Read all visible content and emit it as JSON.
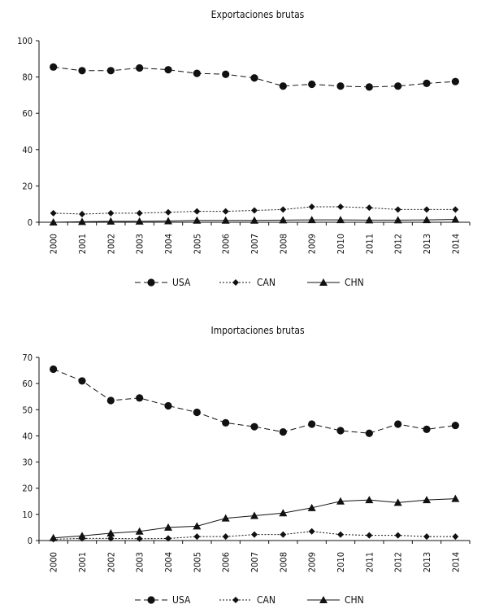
{
  "chart_data": [
    {
      "type": "line",
      "title": "Exportaciones brutas",
      "xlabel": "",
      "ylabel": "",
      "categories": [
        "2000",
        "2001",
        "2002",
        "2003",
        "2004",
        "2005",
        "2006",
        "2007",
        "2008",
        "2009",
        "2010",
        "2011",
        "2012",
        "2013",
        "2014"
      ],
      "ylim": [
        0,
        100
      ],
      "yticks": [
        0,
        20,
        40,
        60,
        80,
        100
      ],
      "grid": false,
      "legend_position": "bottom",
      "series": [
        {
          "name": "USA",
          "marker": "circle",
          "line_style": "dashed",
          "values": [
            85.5,
            83.5,
            83.5,
            85,
            84,
            82,
            81.5,
            79.5,
            75,
            76,
            75,
            74.5,
            75,
            76.5,
            77.5
          ]
        },
        {
          "name": "CAN",
          "marker": "diamond",
          "line_style": "dotted",
          "values": [
            5,
            4.5,
            5,
            5,
            5.5,
            6,
            6,
            6.5,
            7,
            8.5,
            8.5,
            8,
            7,
            7,
            7
          ]
        },
        {
          "name": "CHN",
          "marker": "triangle",
          "line_style": "solid",
          "values": [
            0,
            0.3,
            0.5,
            0.5,
            0.7,
            1,
            1,
            1,
            1.2,
            1.3,
            1.3,
            1.2,
            1.2,
            1.3,
            1.5
          ]
        }
      ]
    },
    {
      "type": "line",
      "title": "Importaciones brutas",
      "xlabel": "",
      "ylabel": "",
      "categories": [
        "2000",
        "2001",
        "2002",
        "2003",
        "2004",
        "2005",
        "2006",
        "2007",
        "2008",
        "2009",
        "2010",
        "2011",
        "2012",
        "2013",
        "2014"
      ],
      "ylim": [
        0,
        70
      ],
      "yticks": [
        0,
        10,
        20,
        30,
        40,
        50,
        60,
        70
      ],
      "grid": false,
      "legend_position": "bottom",
      "series": [
        {
          "name": "USA",
          "marker": "circle",
          "line_style": "dashed",
          "values": [
            65.5,
            61,
            53.5,
            54.5,
            51.5,
            49,
            45,
            43.5,
            41.5,
            44.5,
            42,
            41,
            44.5,
            42.5,
            44
          ]
        },
        {
          "name": "CAN",
          "marker": "diamond",
          "line_style": "dotted",
          "values": [
            0.5,
            0.8,
            0.8,
            0.7,
            0.8,
            1.5,
            1.5,
            2.3,
            2.3,
            3.5,
            2.3,
            2,
            2,
            1.5,
            1.5
          ]
        },
        {
          "name": "CHN",
          "marker": "triangle",
          "line_style": "solid",
          "values": [
            1,
            1.8,
            2.8,
            3.5,
            5,
            5.5,
            8.5,
            9.5,
            10.5,
            12.5,
            15,
            15.5,
            14.5,
            15.5,
            16
          ]
        }
      ]
    }
  ]
}
